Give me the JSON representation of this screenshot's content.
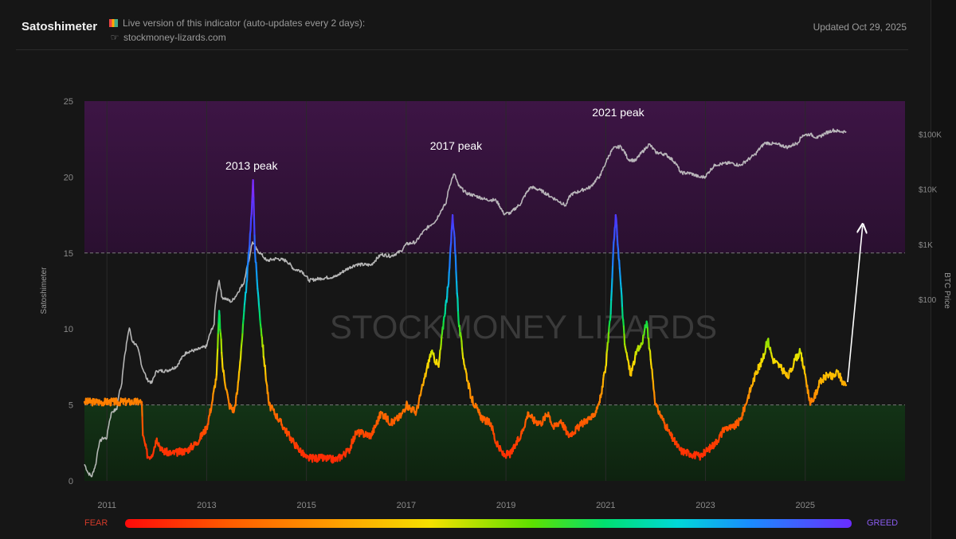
{
  "header": {
    "title": "Satoshimeter",
    "info_line1": "Live version of this indicator (auto-updates every 2 days):",
    "info_line2": "stockmoney-lizards.com",
    "updated": "Updated Oct 29, 2025"
  },
  "legend": {
    "fear": "FEAR",
    "greed": "GREED"
  },
  "watermark": "STOCKMONEY LIZARDS",
  "colors": {
    "greed_zone": "#3a1640",
    "fear_zone": "#102a12",
    "price_line": "#c8c8c8",
    "background": "#161616"
  },
  "chart_data": {
    "type": "line",
    "ylabel": "Satoshimeter",
    "y2label": "BTC Price",
    "ylim": [
      0,
      25
    ],
    "yticks": [
      0,
      5,
      10,
      15,
      20,
      25
    ],
    "xlim": [
      2010.55,
      2027.0
    ],
    "xticks": [
      2011,
      2013,
      2015,
      2017,
      2019,
      2021,
      2023,
      2025
    ],
    "xtick_labels": [
      "2011",
      "2013",
      "2015",
      "2017",
      "2019",
      "2021",
      "2023",
      "2025"
    ],
    "y2_scale": "log",
    "y2lim": [
      0.05,
      400000
    ],
    "y2ticks": [
      100,
      1000,
      10000,
      100000
    ],
    "y2tick_labels": [
      "$100",
      "$1K",
      "$10K",
      "$100K"
    ],
    "zones": [
      {
        "name": "greed",
        "from": 15,
        "to": 25
      },
      {
        "name": "fear",
        "from": 0,
        "to": 5
      }
    ],
    "reference_lines": [
      5,
      15
    ],
    "annotations": [
      {
        "text": "2013 peak",
        "x": 2013.9,
        "y": 20.5
      },
      {
        "text": "2017 peak",
        "x": 2018.0,
        "y": 21.8
      },
      {
        "text": "2021 peak",
        "x": 2021.25,
        "y": 24.0
      }
    ],
    "arrow": {
      "from": [
        2025.85,
        6.5
      ],
      "to": [
        2026.15,
        16.8
      ]
    },
    "series": [
      {
        "name": "BTC Price",
        "axis": "right",
        "points": [
          [
            2010.55,
            0.1
          ],
          [
            2010.62,
            0.07
          ],
          [
            2010.7,
            0.06
          ],
          [
            2010.78,
            0.1
          ],
          [
            2010.85,
            0.25
          ],
          [
            2010.92,
            0.3
          ],
          [
            2011.0,
            0.3
          ],
          [
            2011.1,
            0.9
          ],
          [
            2011.2,
            1.0
          ],
          [
            2011.3,
            3
          ],
          [
            2011.38,
            12
          ],
          [
            2011.45,
            30
          ],
          [
            2011.5,
            18
          ],
          [
            2011.6,
            14
          ],
          [
            2011.7,
            6
          ],
          [
            2011.8,
            3.5
          ],
          [
            2011.9,
            3
          ],
          [
            2012.0,
            5
          ],
          [
            2012.2,
            5
          ],
          [
            2012.4,
            6
          ],
          [
            2012.6,
            11
          ],
          [
            2012.8,
            12
          ],
          [
            2013.0,
            14
          ],
          [
            2013.15,
            35
          ],
          [
            2013.25,
            220
          ],
          [
            2013.3,
            110
          ],
          [
            2013.4,
            100
          ],
          [
            2013.5,
            90
          ],
          [
            2013.6,
            120
          ],
          [
            2013.75,
            200
          ],
          [
            2013.85,
            500
          ],
          [
            2013.92,
            1100
          ],
          [
            2014.0,
            800
          ],
          [
            2014.1,
            650
          ],
          [
            2014.2,
            500
          ],
          [
            2014.4,
            550
          ],
          [
            2014.6,
            500
          ],
          [
            2014.75,
            350
          ],
          [
            2014.9,
            330
          ],
          [
            2015.05,
            220
          ],
          [
            2015.3,
            240
          ],
          [
            2015.6,
            260
          ],
          [
            2015.85,
            370
          ],
          [
            2016.0,
            430
          ],
          [
            2016.3,
            420
          ],
          [
            2016.5,
            650
          ],
          [
            2016.7,
            610
          ],
          [
            2016.9,
            750
          ],
          [
            2017.0,
            1000
          ],
          [
            2017.2,
            1100
          ],
          [
            2017.4,
            1900
          ],
          [
            2017.6,
            2700
          ],
          [
            2017.8,
            5500
          ],
          [
            2017.96,
            19000
          ],
          [
            2018.05,
            11500
          ],
          [
            2018.2,
            8500
          ],
          [
            2018.4,
            7500
          ],
          [
            2018.6,
            6500
          ],
          [
            2018.8,
            6300
          ],
          [
            2018.95,
            3600
          ],
          [
            2019.1,
            3700
          ],
          [
            2019.3,
            5500
          ],
          [
            2019.5,
            11000
          ],
          [
            2019.7,
            9500
          ],
          [
            2019.9,
            7300
          ],
          [
            2020.2,
            5000
          ],
          [
            2020.3,
            8000
          ],
          [
            2020.5,
            9400
          ],
          [
            2020.7,
            11000
          ],
          [
            2020.9,
            18000
          ],
          [
            2021.0,
            30000
          ],
          [
            2021.15,
            55000
          ],
          [
            2021.3,
            60000
          ],
          [
            2021.45,
            35000
          ],
          [
            2021.6,
            33000
          ],
          [
            2021.8,
            55000
          ],
          [
            2021.87,
            66000
          ],
          [
            2022.0,
            47000
          ],
          [
            2022.2,
            43000
          ],
          [
            2022.4,
            30000
          ],
          [
            2022.5,
            20000
          ],
          [
            2022.7,
            19500
          ],
          [
            2022.88,
            16500
          ],
          [
            2023.0,
            17000
          ],
          [
            2023.2,
            28000
          ],
          [
            2023.5,
            30000
          ],
          [
            2023.7,
            27000
          ],
          [
            2023.9,
            37000
          ],
          [
            2024.0,
            43000
          ],
          [
            2024.2,
            70000
          ],
          [
            2024.45,
            65000
          ],
          [
            2024.65,
            58000
          ],
          [
            2024.85,
            70000
          ],
          [
            2024.95,
            96000
          ],
          [
            2025.1,
            100000
          ],
          [
            2025.25,
            85000
          ],
          [
            2025.4,
            104000
          ],
          [
            2025.55,
            118000
          ],
          [
            2025.7,
            112000
          ],
          [
            2025.82,
            112000
          ]
        ]
      },
      {
        "name": "Satoshimeter",
        "axis": "left",
        "colored_by_value": true,
        "points": [
          [
            2010.55,
            5.2
          ],
          [
            2011.7,
            5.2
          ],
          [
            2011.72,
            3.0
          ],
          [
            2011.82,
            1.6
          ],
          [
            2011.9,
            1.7
          ],
          [
            2012.0,
            2.8
          ],
          [
            2012.1,
            2.0
          ],
          [
            2012.3,
            1.8
          ],
          [
            2012.6,
            2.0
          ],
          [
            2012.8,
            2.5
          ],
          [
            2013.0,
            3.5
          ],
          [
            2013.1,
            5.0
          ],
          [
            2013.2,
            7.0
          ],
          [
            2013.25,
            11.2
          ],
          [
            2013.32,
            7.5
          ],
          [
            2013.45,
            5.0
          ],
          [
            2013.55,
            4.6
          ],
          [
            2013.62,
            6.0
          ],
          [
            2013.7,
            9.0
          ],
          [
            2013.8,
            13.0
          ],
          [
            2013.88,
            16.5
          ],
          [
            2013.93,
            19.8
          ],
          [
            2013.97,
            15.0
          ],
          [
            2014.05,
            11.5
          ],
          [
            2014.15,
            8.0
          ],
          [
            2014.25,
            5.0
          ],
          [
            2014.4,
            4.3
          ],
          [
            2014.55,
            3.5
          ],
          [
            2014.75,
            2.5
          ],
          [
            2015.0,
            1.5
          ],
          [
            2015.3,
            1.5
          ],
          [
            2015.6,
            1.4
          ],
          [
            2015.85,
            2.0
          ],
          [
            2016.0,
            3.2
          ],
          [
            2016.3,
            3.0
          ],
          [
            2016.5,
            4.5
          ],
          [
            2016.7,
            3.8
          ],
          [
            2016.9,
            4.3
          ],
          [
            2017.0,
            5.0
          ],
          [
            2017.2,
            4.5
          ],
          [
            2017.35,
            6.5
          ],
          [
            2017.5,
            8.5
          ],
          [
            2017.65,
            7.5
          ],
          [
            2017.75,
            10.5
          ],
          [
            2017.85,
            13.0
          ],
          [
            2017.93,
            17.5
          ],
          [
            2017.97,
            16.0
          ],
          [
            2018.05,
            10.5
          ],
          [
            2018.15,
            8.0
          ],
          [
            2018.3,
            5.5
          ],
          [
            2018.45,
            4.5
          ],
          [
            2018.55,
            4.0
          ],
          [
            2018.7,
            3.8
          ],
          [
            2018.8,
            2.5
          ],
          [
            2018.95,
            1.7
          ],
          [
            2019.1,
            1.8
          ],
          [
            2019.3,
            3.0
          ],
          [
            2019.45,
            4.5
          ],
          [
            2019.55,
            4.0
          ],
          [
            2019.7,
            3.8
          ],
          [
            2019.85,
            4.5
          ],
          [
            2019.95,
            3.5
          ],
          [
            2020.1,
            4.0
          ],
          [
            2020.25,
            3.0
          ],
          [
            2020.45,
            3.5
          ],
          [
            2020.6,
            4.0
          ],
          [
            2020.75,
            4.2
          ],
          [
            2020.9,
            5.5
          ],
          [
            2021.0,
            7.5
          ],
          [
            2021.1,
            11.0
          ],
          [
            2021.15,
            15.0
          ],
          [
            2021.2,
            17.5
          ],
          [
            2021.28,
            14.0
          ],
          [
            2021.38,
            9.0
          ],
          [
            2021.5,
            7.0
          ],
          [
            2021.62,
            8.5
          ],
          [
            2021.72,
            9.0
          ],
          [
            2021.82,
            10.5
          ],
          [
            2021.9,
            8.0
          ],
          [
            2022.0,
            5.0
          ],
          [
            2022.15,
            4.0
          ],
          [
            2022.3,
            3.0
          ],
          [
            2022.5,
            2.0
          ],
          [
            2022.7,
            1.8
          ],
          [
            2022.9,
            1.6
          ],
          [
            2023.0,
            1.9
          ],
          [
            2023.2,
            2.5
          ],
          [
            2023.4,
            3.5
          ],
          [
            2023.55,
            3.5
          ],
          [
            2023.7,
            4.0
          ],
          [
            2023.85,
            5.5
          ],
          [
            2024.0,
            7.0
          ],
          [
            2024.15,
            8.0
          ],
          [
            2024.25,
            9.3
          ],
          [
            2024.35,
            8.0
          ],
          [
            2024.5,
            7.5
          ],
          [
            2024.65,
            6.8
          ],
          [
            2024.8,
            8.0
          ],
          [
            2024.9,
            8.5
          ],
          [
            2025.0,
            7.0
          ],
          [
            2025.1,
            5.0
          ],
          [
            2025.18,
            5.5
          ],
          [
            2025.3,
            6.5
          ],
          [
            2025.45,
            7.0
          ],
          [
            2025.55,
            6.8
          ],
          [
            2025.65,
            7.2
          ],
          [
            2025.75,
            6.5
          ],
          [
            2025.82,
            6.3
          ]
        ]
      }
    ]
  }
}
